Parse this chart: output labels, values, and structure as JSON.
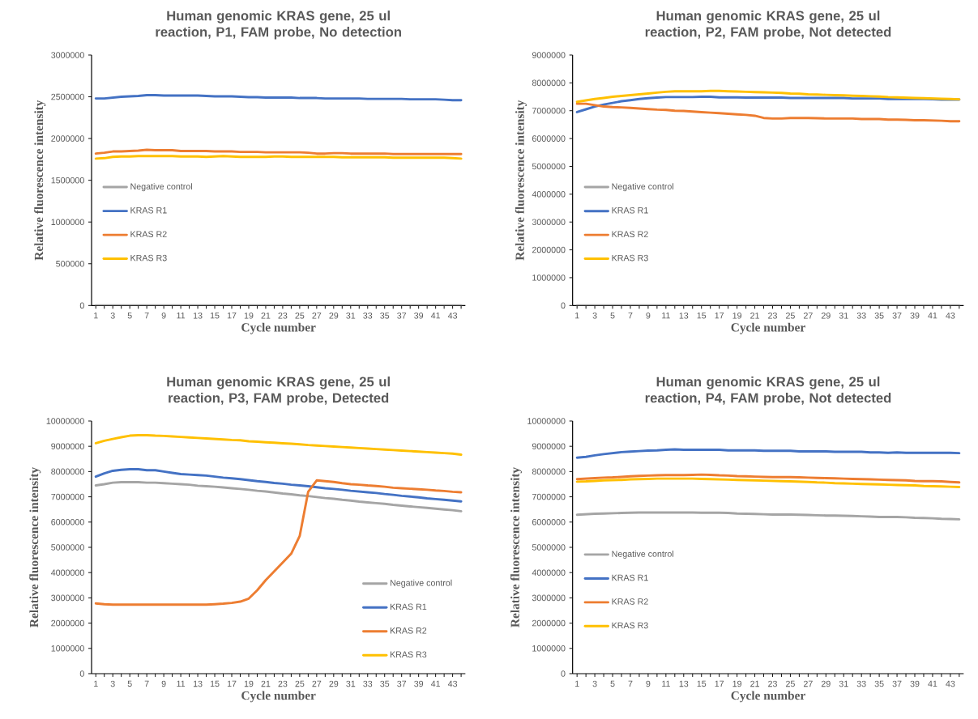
{
  "chart_data": [
    {
      "type": "line",
      "title": "Human genomic KRAS gene, 25 ul reaction, P1, FAM probe, No detection",
      "xlabel": "Cycle number",
      "ylabel": "Relative fluorescence intensity",
      "legend": "left",
      "marker": "none",
      "categories": [
        "1",
        null,
        "3",
        null,
        "5",
        null,
        "7",
        null,
        "9",
        null,
        "11",
        null,
        "13",
        null,
        "15",
        null,
        "17",
        null,
        "19",
        null,
        "21",
        null,
        "23",
        null,
        "25",
        null,
        "27",
        null,
        "29",
        null,
        "31",
        null,
        "33",
        null,
        "35",
        null,
        "37",
        null,
        "39",
        null,
        "41",
        null,
        "43",
        null
      ],
      "ylim": [
        0,
        3000000
      ],
      "yticks": [
        0,
        500000,
        1000000,
        1500000,
        2000000,
        2500000,
        3000000
      ],
      "series": [
        {
          "name": "Negative control",
          "color": "#a5a5a5",
          "values": [
            0,
            0,
            0,
            0,
            0,
            0,
            0,
            0,
            0,
            0,
            0,
            0,
            0,
            0,
            0,
            0,
            0,
            0,
            0,
            0,
            0,
            0,
            0,
            0,
            0,
            0,
            0,
            0,
            0,
            0,
            0,
            0,
            0,
            0,
            0,
            0,
            0,
            0,
            0,
            0,
            0,
            0,
            0,
            0
          ]
        },
        {
          "name": "KRAS R1",
          "color": "#4472c4",
          "values": [
            2480000,
            2480000,
            2490000,
            2500000,
            2505000,
            2510000,
            2520000,
            2520000,
            2515000,
            2515000,
            2515000,
            2515000,
            2515000,
            2510000,
            2505000,
            2505000,
            2505000,
            2500000,
            2495000,
            2495000,
            2490000,
            2490000,
            2490000,
            2490000,
            2485000,
            2485000,
            2485000,
            2480000,
            2480000,
            2480000,
            2480000,
            2480000,
            2475000,
            2475000,
            2475000,
            2475000,
            2475000,
            2470000,
            2470000,
            2470000,
            2470000,
            2465000,
            2460000,
            2460000
          ]
        },
        {
          "name": "KRAS R2",
          "color": "#ed7d31",
          "values": [
            1820000,
            1830000,
            1845000,
            1845000,
            1850000,
            1855000,
            1865000,
            1860000,
            1860000,
            1860000,
            1850000,
            1850000,
            1850000,
            1850000,
            1845000,
            1845000,
            1845000,
            1840000,
            1840000,
            1840000,
            1835000,
            1835000,
            1835000,
            1835000,
            1835000,
            1830000,
            1820000,
            1820000,
            1825000,
            1825000,
            1820000,
            1820000,
            1820000,
            1820000,
            1820000,
            1815000,
            1815000,
            1815000,
            1815000,
            1815000,
            1815000,
            1815000,
            1815000,
            1815000
          ]
        },
        {
          "name": "KRAS R3",
          "color": "#ffc000",
          "values": [
            1760000,
            1765000,
            1780000,
            1785000,
            1785000,
            1790000,
            1790000,
            1790000,
            1790000,
            1790000,
            1785000,
            1785000,
            1785000,
            1780000,
            1785000,
            1790000,
            1785000,
            1780000,
            1780000,
            1780000,
            1780000,
            1785000,
            1785000,
            1780000,
            1780000,
            1780000,
            1780000,
            1780000,
            1780000,
            1775000,
            1775000,
            1775000,
            1775000,
            1775000,
            1775000,
            1770000,
            1770000,
            1770000,
            1770000,
            1770000,
            1770000,
            1770000,
            1765000,
            1760000
          ]
        }
      ]
    },
    {
      "type": "line",
      "title": "Human genomic KRAS gene, 25 ul reaction, P2, FAM probe, Not detected",
      "xlabel": "Cycle number",
      "ylabel": "Relative fluorescence intensity",
      "legend": "left",
      "marker": "none",
      "categories": [
        "1",
        null,
        "3",
        null,
        "5",
        null,
        "7",
        null,
        "9",
        null,
        "11",
        null,
        "13",
        null,
        "15",
        null,
        "17",
        null,
        "19",
        null,
        "21",
        null,
        "23",
        null,
        "25",
        null,
        "27",
        null,
        "29",
        null,
        "31",
        null,
        "33",
        null,
        "35",
        null,
        "37",
        null,
        "39",
        null,
        "41",
        null,
        "43",
        null
      ],
      "ylim": [
        0,
        9000000
      ],
      "yticks": [
        0,
        1000000,
        2000000,
        3000000,
        4000000,
        5000000,
        6000000,
        7000000,
        8000000,
        9000000
      ],
      "series": [
        {
          "name": "Negative control",
          "color": "#a5a5a5",
          "values": [
            0,
            0,
            0,
            0,
            0,
            0,
            0,
            0,
            0,
            0,
            0,
            0,
            0,
            0,
            0,
            0,
            0,
            0,
            0,
            0,
            0,
            0,
            0,
            0,
            0,
            0,
            0,
            0,
            0,
            0,
            0,
            0,
            0,
            0,
            0,
            0,
            0,
            0,
            0,
            0,
            0,
            0,
            0,
            0
          ]
        },
        {
          "name": "KRAS R1",
          "color": "#4472c4",
          "values": [
            6950000,
            7050000,
            7150000,
            7220000,
            7280000,
            7340000,
            7380000,
            7420000,
            7450000,
            7470000,
            7490000,
            7490000,
            7490000,
            7490000,
            7500000,
            7500000,
            7480000,
            7480000,
            7480000,
            7470000,
            7470000,
            7470000,
            7470000,
            7470000,
            7460000,
            7460000,
            7460000,
            7460000,
            7460000,
            7460000,
            7460000,
            7440000,
            7440000,
            7440000,
            7440000,
            7420000,
            7420000,
            7420000,
            7420000,
            7420000,
            7410000,
            7400000,
            7400000,
            7400000
          ]
        },
        {
          "name": "KRAS R2",
          "color": "#ed7d31",
          "values": [
            7250000,
            7250000,
            7200000,
            7150000,
            7130000,
            7120000,
            7100000,
            7080000,
            7060000,
            7040000,
            7030000,
            7000000,
            6990000,
            6970000,
            6950000,
            6930000,
            6910000,
            6890000,
            6870000,
            6850000,
            6820000,
            6740000,
            6720000,
            6720000,
            6740000,
            6740000,
            6740000,
            6730000,
            6720000,
            6720000,
            6720000,
            6720000,
            6700000,
            6700000,
            6700000,
            6680000,
            6680000,
            6670000,
            6660000,
            6660000,
            6650000,
            6640000,
            6620000,
            6620000
          ]
        },
        {
          "name": "KRAS R3",
          "color": "#ffc000",
          "values": [
            7320000,
            7370000,
            7420000,
            7460000,
            7500000,
            7530000,
            7560000,
            7590000,
            7620000,
            7650000,
            7680000,
            7700000,
            7700000,
            7700000,
            7700000,
            7710000,
            7710000,
            7700000,
            7690000,
            7680000,
            7670000,
            7660000,
            7650000,
            7640000,
            7620000,
            7610000,
            7590000,
            7580000,
            7570000,
            7560000,
            7550000,
            7540000,
            7530000,
            7520000,
            7510000,
            7490000,
            7480000,
            7470000,
            7460000,
            7450000,
            7440000,
            7430000,
            7420000,
            7410000
          ]
        }
      ]
    },
    {
      "type": "line",
      "title": "Human genomic KRAS gene, 25 ul reaction, P3, FAM probe, Detected",
      "xlabel": "Cycle number",
      "ylabel": "Relative fluorescence intensity",
      "legend": "bottom right",
      "marker": "none",
      "categories": [
        "1",
        null,
        "3",
        null,
        "5",
        null,
        "7",
        null,
        "9",
        null,
        "11",
        null,
        "13",
        null,
        "15",
        null,
        "17",
        null,
        "19",
        null,
        "21",
        null,
        "23",
        null,
        "25",
        null,
        "27",
        null,
        "29",
        null,
        "31",
        null,
        "33",
        null,
        "35",
        null,
        "37",
        null,
        "39",
        null,
        "41",
        null,
        "43",
        null
      ],
      "ylim": [
        0,
        10000000
      ],
      "yticks": [
        0,
        1000000,
        2000000,
        3000000,
        4000000,
        5000000,
        6000000,
        7000000,
        8000000,
        9000000,
        10000000
      ],
      "series": [
        {
          "name": "Negative control",
          "color": "#a5a5a5",
          "values": [
            7450000,
            7500000,
            7560000,
            7580000,
            7580000,
            7580000,
            7560000,
            7560000,
            7540000,
            7520000,
            7500000,
            7480000,
            7440000,
            7420000,
            7400000,
            7370000,
            7340000,
            7310000,
            7280000,
            7240000,
            7210000,
            7170000,
            7130000,
            7100000,
            7060000,
            7030000,
            6990000,
            6950000,
            6920000,
            6880000,
            6850000,
            6810000,
            6780000,
            6750000,
            6720000,
            6680000,
            6650000,
            6620000,
            6590000,
            6560000,
            6530000,
            6500000,
            6470000,
            6430000
          ]
        },
        {
          "name": "KRAS R1",
          "color": "#4472c4",
          "values": [
            7800000,
            7930000,
            8030000,
            8070000,
            8090000,
            8090000,
            8050000,
            8050000,
            8000000,
            7950000,
            7900000,
            7880000,
            7860000,
            7840000,
            7800000,
            7760000,
            7730000,
            7700000,
            7660000,
            7620000,
            7590000,
            7550000,
            7520000,
            7480000,
            7450000,
            7420000,
            7380000,
            7340000,
            7310000,
            7280000,
            7240000,
            7210000,
            7180000,
            7150000,
            7110000,
            7080000,
            7040000,
            7010000,
            6980000,
            6940000,
            6910000,
            6880000,
            6850000,
            6820000
          ]
        },
        {
          "name": "KRAS R2",
          "color": "#ed7d31",
          "values": [
            2780000,
            2750000,
            2730000,
            2730000,
            2730000,
            2730000,
            2730000,
            2730000,
            2730000,
            2730000,
            2730000,
            2730000,
            2730000,
            2730000,
            2750000,
            2770000,
            2800000,
            2850000,
            2970000,
            3300000,
            3700000,
            4050000,
            4400000,
            4750000,
            5450000,
            7200000,
            7650000,
            7620000,
            7590000,
            7540000,
            7500000,
            7480000,
            7450000,
            7430000,
            7400000,
            7360000,
            7340000,
            7320000,
            7300000,
            7280000,
            7250000,
            7230000,
            7200000,
            7180000
          ]
        },
        {
          "name": "KRAS R3",
          "color": "#ffc000",
          "values": [
            9120000,
            9220000,
            9290000,
            9360000,
            9420000,
            9440000,
            9440000,
            9420000,
            9410000,
            9390000,
            9370000,
            9350000,
            9330000,
            9310000,
            9290000,
            9270000,
            9250000,
            9240000,
            9200000,
            9180000,
            9160000,
            9140000,
            9120000,
            9100000,
            9080000,
            9050000,
            9030000,
            9010000,
            8990000,
            8970000,
            8950000,
            8930000,
            8910000,
            8890000,
            8870000,
            8850000,
            8830000,
            8810000,
            8790000,
            8770000,
            8750000,
            8730000,
            8710000,
            8670000
          ]
        }
      ]
    },
    {
      "type": "line",
      "title": "Human genomic KRAS gene, 25 ul reaction, P4, FAM probe, Not detected",
      "xlabel": "Cycle number",
      "ylabel": "Relative fluorescence intensity",
      "legend": "left",
      "marker": "none",
      "categories": [
        "1",
        null,
        "3",
        null,
        "5",
        null,
        "7",
        null,
        "9",
        null,
        "11",
        null,
        "13",
        null,
        "15",
        null,
        "17",
        null,
        "19",
        null,
        "21",
        null,
        "23",
        null,
        "25",
        null,
        "27",
        null,
        "29",
        null,
        "31",
        null,
        "33",
        null,
        "35",
        null,
        "37",
        null,
        "39",
        null,
        "41",
        null,
        "43",
        null
      ],
      "ylim": [
        0,
        10000000
      ],
      "yticks": [
        0,
        1000000,
        2000000,
        3000000,
        4000000,
        5000000,
        6000000,
        7000000,
        8000000,
        9000000,
        10000000
      ],
      "series": [
        {
          "name": "Negative control",
          "color": "#a5a5a5",
          "values": [
            6290000,
            6310000,
            6330000,
            6340000,
            6350000,
            6360000,
            6370000,
            6380000,
            6380000,
            6380000,
            6380000,
            6380000,
            6380000,
            6380000,
            6370000,
            6370000,
            6370000,
            6360000,
            6340000,
            6330000,
            6320000,
            6310000,
            6300000,
            6300000,
            6300000,
            6290000,
            6280000,
            6270000,
            6260000,
            6260000,
            6250000,
            6240000,
            6230000,
            6220000,
            6200000,
            6200000,
            6200000,
            6190000,
            6170000,
            6160000,
            6150000,
            6130000,
            6120000,
            6110000
          ]
        },
        {
          "name": "KRAS R1",
          "color": "#4472c4",
          "values": [
            8550000,
            8580000,
            8640000,
            8690000,
            8730000,
            8770000,
            8790000,
            8810000,
            8830000,
            8840000,
            8860000,
            8880000,
            8860000,
            8860000,
            8860000,
            8860000,
            8860000,
            8840000,
            8840000,
            8840000,
            8840000,
            8820000,
            8820000,
            8820000,
            8820000,
            8800000,
            8800000,
            8800000,
            8800000,
            8780000,
            8780000,
            8780000,
            8780000,
            8760000,
            8760000,
            8740000,
            8760000,
            8740000,
            8740000,
            8740000,
            8740000,
            8740000,
            8740000,
            8730000
          ]
        },
        {
          "name": "KRAS R2",
          "color": "#ed7d31",
          "values": [
            7700000,
            7720000,
            7740000,
            7760000,
            7770000,
            7790000,
            7810000,
            7830000,
            7840000,
            7850000,
            7860000,
            7860000,
            7860000,
            7870000,
            7880000,
            7870000,
            7850000,
            7840000,
            7820000,
            7810000,
            7800000,
            7790000,
            7780000,
            7780000,
            7780000,
            7770000,
            7760000,
            7750000,
            7740000,
            7730000,
            7720000,
            7710000,
            7700000,
            7690000,
            7680000,
            7670000,
            7660000,
            7650000,
            7630000,
            7620000,
            7620000,
            7610000,
            7590000,
            7570000
          ]
        },
        {
          "name": "KRAS R3",
          "color": "#ffc000",
          "values": [
            7600000,
            7610000,
            7630000,
            7650000,
            7660000,
            7670000,
            7690000,
            7700000,
            7710000,
            7720000,
            7720000,
            7720000,
            7720000,
            7720000,
            7710000,
            7700000,
            7690000,
            7680000,
            7670000,
            7660000,
            7650000,
            7640000,
            7630000,
            7620000,
            7610000,
            7600000,
            7590000,
            7570000,
            7560000,
            7540000,
            7530000,
            7520000,
            7510000,
            7500000,
            7490000,
            7480000,
            7470000,
            7460000,
            7450000,
            7430000,
            7420000,
            7410000,
            7400000,
            7390000
          ]
        }
      ]
    }
  ]
}
